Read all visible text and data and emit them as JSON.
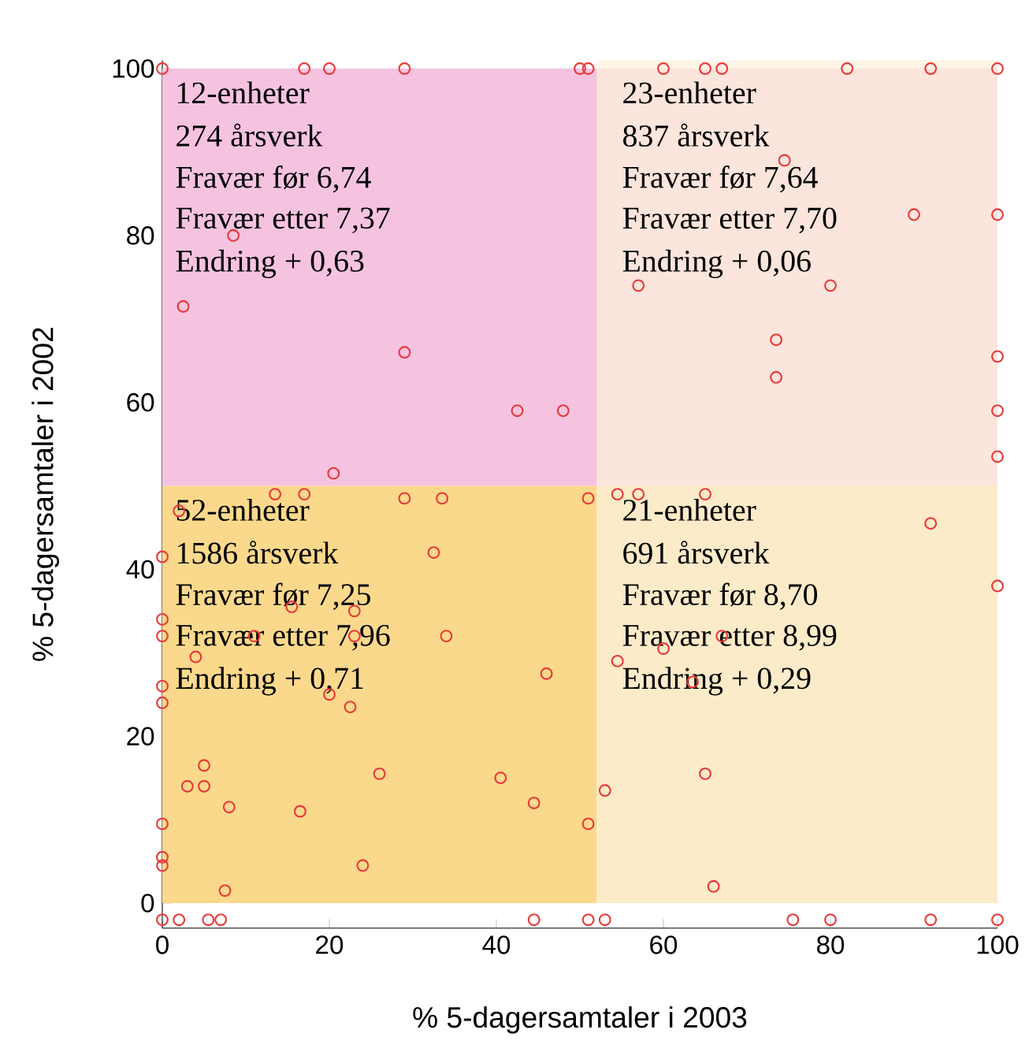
{
  "chart_data": {
    "type": "scatter",
    "xlabel": "% 5-dagersamtaler i 2003",
    "ylabel": "% 5-dagersamtaler i 2002",
    "xlim": [
      0,
      100
    ],
    "ylim": [
      -3,
      101
    ],
    "xticks": [
      0,
      20,
      40,
      60,
      80,
      100
    ],
    "yticks": [
      0,
      20,
      40,
      60,
      80,
      100
    ],
    "grid": false,
    "marker": "circle",
    "bands": [
      {
        "axis": "y",
        "from": 0,
        "to": 50,
        "color": "#fbd98c"
      },
      {
        "axis": "y",
        "from": 50,
        "to": 100,
        "color": "#f5c3e0"
      },
      {
        "axis": "x",
        "from": 52,
        "to": 100,
        "color": "#fcf0dc"
      }
    ],
    "annotations": [
      "12-enheter",
      "274 årsverk",
      "Fravær før 6,74",
      "Fravær etter 7,37",
      "Endring + 0,63",
      "23-enheter",
      "837 årsverk",
      "Fravær før 7,64",
      "Fravær etter 7,70",
      "Endring + 0,06",
      "52-enheter",
      "1586 årsverk",
      "Fravær før 7,25",
      "Fravær etter 7,96",
      "Endring + 0,71",
      "21-enheter",
      "691 årsverk",
      "Fravær før 8,70",
      "Fravær etter 8,99",
      "Endring + 0,29"
    ],
    "series": [
      {
        "color": "#e83a3a",
        "x": [
          0,
          17,
          20,
          29,
          50,
          51,
          60,
          65,
          67,
          82,
          92,
          100,
          8.5,
          2.5,
          29,
          42.5,
          48,
          20.5,
          74.5,
          90,
          100,
          57,
          80,
          73.5,
          73.5,
          100,
          100,
          100,
          2,
          13.5,
          17,
          29,
          33.5,
          51,
          32.5,
          0,
          0,
          0,
          4,
          15.5,
          23,
          11,
          23,
          34,
          46,
          0,
          0,
          20,
          22.5,
          5,
          3,
          5,
          8,
          16.5,
          26,
          40.5,
          44.5,
          51,
          0,
          0,
          0,
          24,
          7.5,
          0,
          2,
          5.5,
          7,
          44.5,
          51,
          53,
          75.5,
          80,
          92,
          100,
          54.5,
          57,
          65,
          92,
          100,
          67,
          60,
          54.5,
          63.5,
          65,
          53,
          66
        ],
        "values": [
          100,
          100,
          100,
          100,
          100,
          100,
          100,
          100,
          100,
          100,
          100,
          100,
          80,
          71.5,
          66,
          59,
          59,
          51.5,
          89,
          82.5,
          82.5,
          74,
          74,
          67.5,
          63,
          65.5,
          59,
          53.5,
          47,
          49,
          49,
          48.5,
          48.5,
          48.5,
          42,
          41.5,
          34,
          32,
          29.5,
          35.5,
          35,
          32,
          32,
          32,
          27.5,
          26,
          24,
          25,
          23.5,
          16.5,
          14,
          14,
          11.5,
          11,
          15.5,
          15,
          12,
          9.5,
          9.5,
          5.5,
          4.5,
          4.5,
          1.5,
          -2,
          -2,
          -2,
          -2,
          -2,
          -2,
          -2,
          -2,
          -2,
          -2,
          -2,
          49,
          49,
          49,
          45.5,
          38,
          32,
          30.5,
          29,
          26.5,
          15.5,
          13.5,
          2
        ]
      }
    ]
  }
}
